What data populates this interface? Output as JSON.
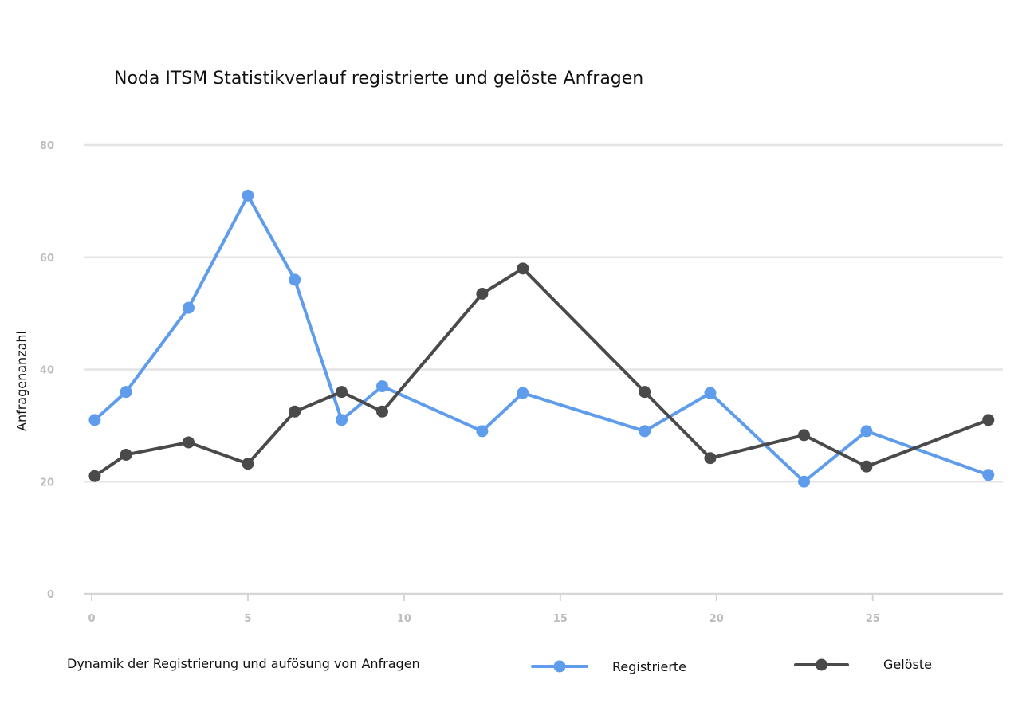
{
  "chart_data": {
    "type": "line",
    "title": "Noda ITSM Statistikverlauf registrierte und gelöste Anfragen",
    "xlabel": "Dynamik der Registrierung und aufösung von Anfragen",
    "ylabel": "Anfragenanzahl",
    "xlim": [
      0,
      29
    ],
    "ylim": [
      0,
      80
    ],
    "x_ticks": [
      0,
      5,
      10,
      15,
      20,
      25
    ],
    "y_ticks": [
      0,
      20,
      40,
      60,
      80
    ],
    "grid": true,
    "legend_position": "bottom",
    "series": [
      {
        "name": "Registrierte",
        "color": "#5f9cec",
        "points": [
          [
            0.1,
            31
          ],
          [
            1.1,
            36
          ],
          [
            3.1,
            51
          ],
          [
            5.0,
            71
          ],
          [
            6.5,
            56
          ],
          [
            8.0,
            31
          ],
          [
            9.3,
            37
          ],
          [
            12.5,
            29
          ],
          [
            13.8,
            35.8
          ],
          [
            17.7,
            29
          ],
          [
            19.8,
            35.8
          ],
          [
            22.8,
            20
          ],
          [
            24.8,
            29
          ],
          [
            28.7,
            21.2
          ]
        ]
      },
      {
        "name": "Gelöste",
        "color": "#4a4a4a",
        "points": [
          [
            0.1,
            21
          ],
          [
            1.1,
            24.8
          ],
          [
            3.1,
            27
          ],
          [
            5.0,
            23.2
          ],
          [
            6.5,
            32.5
          ],
          [
            8.0,
            36
          ],
          [
            9.3,
            32.5
          ],
          [
            12.5,
            53.5
          ],
          [
            13.8,
            58
          ],
          [
            17.7,
            36
          ],
          [
            19.8,
            24.2
          ],
          [
            22.8,
            28.3
          ],
          [
            24.8,
            22.7
          ],
          [
            28.7,
            31
          ]
        ]
      }
    ]
  }
}
